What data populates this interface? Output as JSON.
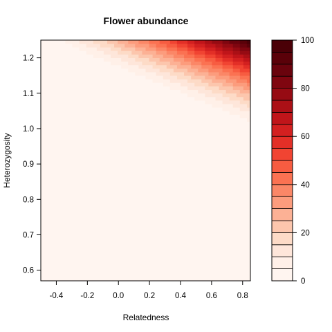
{
  "chart_data": {
    "type": "heatmap",
    "title": "Flower abundance",
    "xlabel": "Relatedness",
    "ylabel": "Heterozygosity",
    "xlim": [
      -0.5,
      0.85
    ],
    "ylim": [
      0.57,
      1.25
    ],
    "x_ticks": [
      -0.4,
      -0.2,
      0.0,
      0.2,
      0.4,
      0.6,
      0.8
    ],
    "x_tick_labels": [
      "-0.4",
      "-0.2",
      "0.0",
      "0.2",
      "0.4",
      "0.6",
      "0.8"
    ],
    "y_ticks": [
      0.6,
      0.7,
      0.8,
      0.9,
      1.0,
      1.1,
      1.2
    ],
    "y_tick_labels": [
      "0.6",
      "0.7",
      "0.8",
      "0.9",
      "1.0",
      "1.1",
      "1.2"
    ],
    "zlim": [
      0,
      100
    ],
    "z_ticks": [
      0,
      20,
      40,
      60,
      80,
      100
    ],
    "z_tick_labels": [
      "0",
      "20",
      "40",
      "60",
      "80",
      "100"
    ],
    "levels": [
      0,
      5,
      10,
      15,
      20,
      25,
      30,
      35,
      40,
      45,
      50,
      55,
      60,
      65,
      70,
      75,
      80,
      85,
      90,
      95,
      100
    ],
    "palette": [
      "#fff5f0",
      "#fff0e8",
      "#fee6da",
      "#fddbc7",
      "#fcc6ad",
      "#fcb195",
      "#fc9c7d",
      "#fb8767",
      "#fb7252",
      "#f75c41",
      "#f14432",
      "#e32f27",
      "#d32020",
      "#c0151a",
      "#ab1016",
      "#960b13",
      "#7f0610",
      "#6a030d",
      "#5a0109",
      "#4a0007"
    ],
    "surface": {
      "x": [
        -0.5,
        0.85
      ],
      "y": [
        0.57,
        1.25
      ],
      "z_corners": {
        "bottom_left": 0,
        "bottom_right": 0,
        "top_left": 0,
        "top_right": 100
      },
      "zero_boundary": [
        [
          -0.5,
          1.23
        ],
        [
          0.85,
          0.98
        ]
      ]
    }
  }
}
